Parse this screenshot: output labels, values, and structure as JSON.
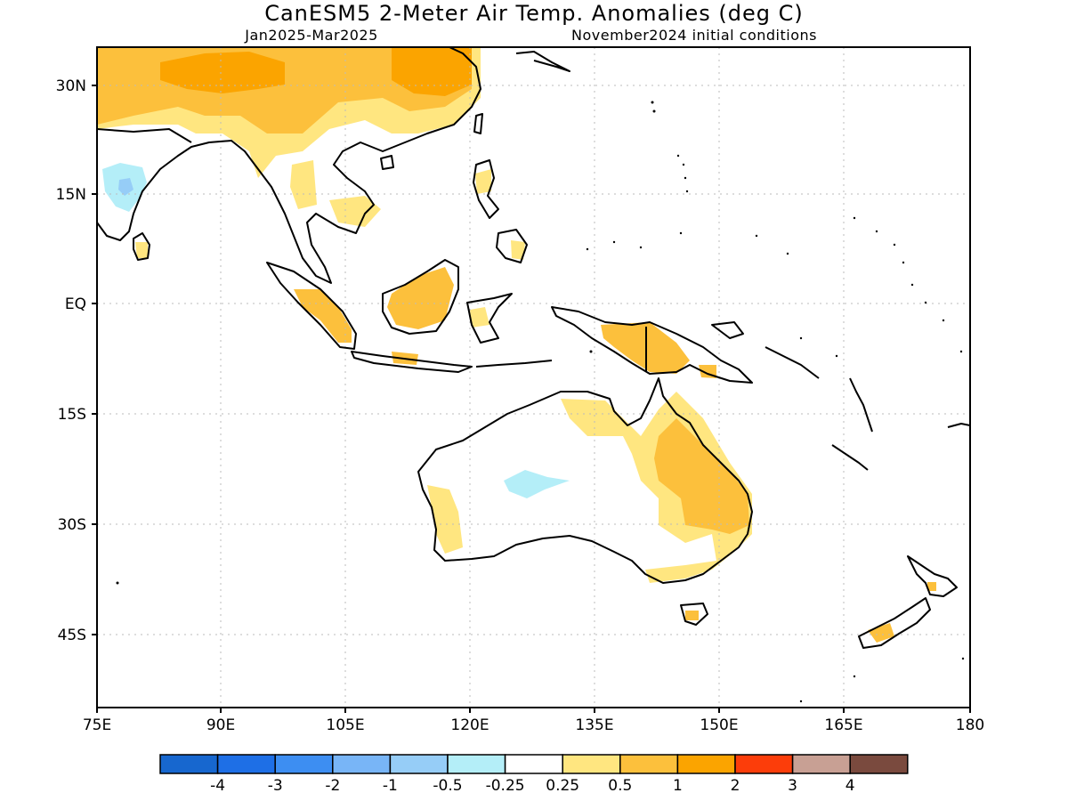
{
  "title": "CanESM5 2-Meter Air Temp. Anomalies (deg C)",
  "subtitle_left": "Jan2025-Mar2025",
  "subtitle_right": "November2024 initial conditions",
  "lat_labels": [
    "30N",
    "15N",
    "EQ",
    "15S",
    "30S",
    "45S"
  ],
  "lon_labels": [
    "75E",
    "90E",
    "105E",
    "120E",
    "135E",
    "150E",
    "165E",
    "180"
  ],
  "colors": {
    "c_lt_-4": "#1767cf",
    "c_-4_-3": "#1e6fe6",
    "c_-3_-2": "#3d8ef2",
    "c_-2_-1": "#78b5f7",
    "c_-1_-0.5": "#96cdf7",
    "c_-0.5_-0.25": "#b4eef8",
    "c_neutral": "#ffffff",
    "c_0.25_0.5": "#ffe680",
    "c_0.5_1": "#fcc03c",
    "c_1_2": "#fba400",
    "c_2_3": "#fc3d0a",
    "c_3_4": "#c8a094",
    "c_gt_4": "#7a4a3e",
    "coast": "#000000",
    "grid": "#bbbbbb"
  },
  "colorbar": {
    "labels": [
      "-4",
      "-3",
      "-2",
      "-1",
      "-0.5",
      "-0.25",
      "0.25",
      "0.5",
      "1",
      "2",
      "3",
      "4"
    ]
  }
}
